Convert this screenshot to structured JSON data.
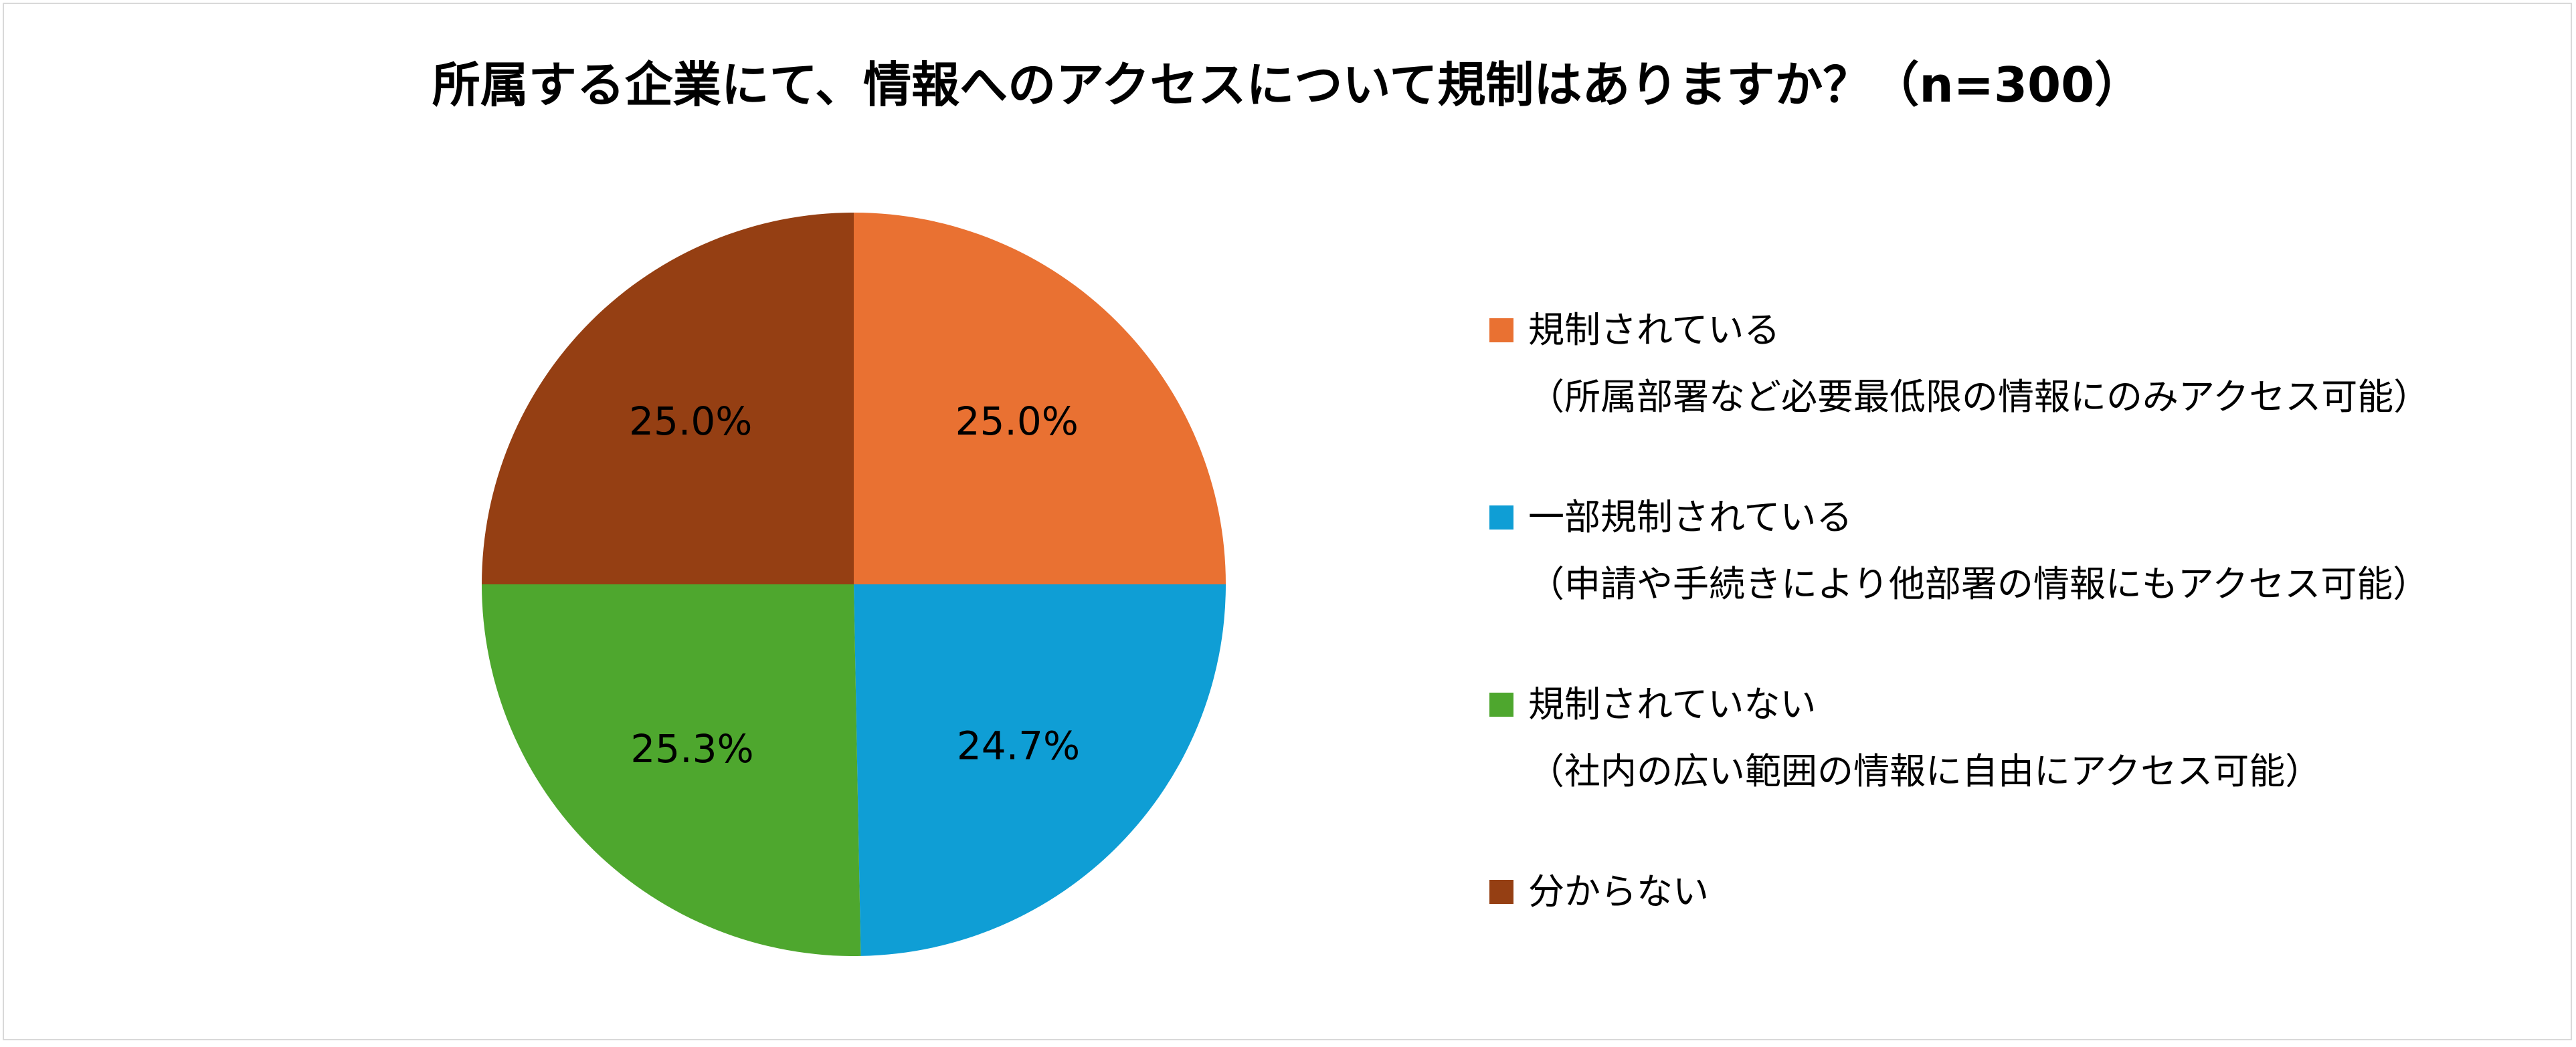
{
  "chart_data": {
    "type": "pie",
    "title": "所属する企業にて、情報へのアクセスについて規制はありますか？（n=300）",
    "unit": "%",
    "slices": [
      {
        "label": "規制されている",
        "sublabel": "（所属部署など必要最低限の情報にのみアクセス可能）",
        "value": 25.0,
        "display": "25.0%",
        "color": "#E97132"
      },
      {
        "label": "一部規制されている",
        "sublabel": "（申請や手続きにより他部署の情報にもアクセス可能）",
        "value": 24.7,
        "display": "24.7%",
        "color": "#0F9ED5"
      },
      {
        "label": "規制されていない",
        "sublabel": "（社内の広い範囲の情報に自由にアクセス可能）",
        "value": 25.3,
        "display": "25.3%",
        "color": "#4EA72E"
      },
      {
        "label": "分からない",
        "sublabel": "",
        "value": 25.0,
        "display": "25.0%",
        "color": "#953F13"
      }
    ],
    "legend_position": "right",
    "start_angle": "12 o'clock",
    "direction": "clockwise"
  }
}
